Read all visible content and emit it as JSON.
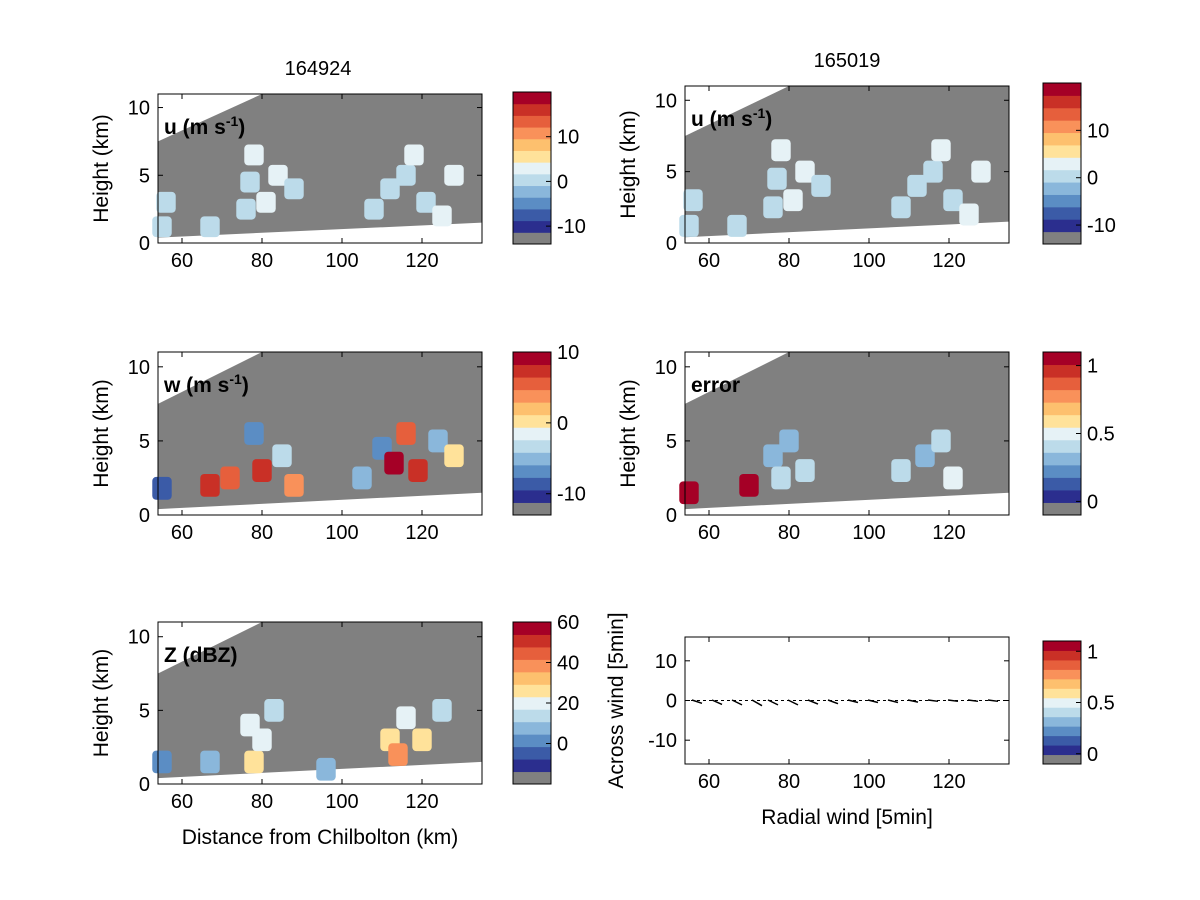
{
  "panel_titles": {
    "left": "164924",
    "right": "165019"
  },
  "palette": [
    "#808080",
    "#2b2e8e",
    "#3b5ba7",
    "#5b8dc4",
    "#8ab7db",
    "#bcdbea",
    "#e6f2f6",
    "#ffe29a",
    "#fdc06e",
    "#f9915a",
    "#e65f3c",
    "#c93026",
    "#a50026"
  ],
  "chart_data": [
    {
      "type": "heatmap",
      "panel": "u-164924",
      "in_label": "u (m s",
      "in_label_sup": "-1",
      "in_label_close": ")",
      "ylabel": "Height (km)",
      "xlabel": "",
      "xlim": [
        54,
        135
      ],
      "ylim": [
        0,
        11
      ],
      "xticks": [
        "60",
        "80",
        "100",
        "120"
      ],
      "yticks": [
        "0",
        "5",
        "10"
      ],
      "colorbar": {
        "ticks": [
          "10",
          "0",
          "-10"
        ],
        "tick_values": [
          10,
          0,
          -10
        ],
        "min": -14,
        "max": 20
      },
      "cells": [
        [
          55,
          1.2,
          0
        ],
        [
          56,
          3,
          0
        ],
        [
          67,
          1.2,
          0
        ],
        [
          76,
          2.5,
          0
        ],
        [
          78,
          6.5,
          1
        ],
        [
          77,
          4.5,
          0
        ],
        [
          81,
          3,
          1
        ],
        [
          84,
          5,
          1
        ],
        [
          88,
          4,
          0
        ],
        [
          108,
          2.5,
          0
        ],
        [
          112,
          4,
          0
        ],
        [
          116,
          5,
          0
        ],
        [
          118,
          6.5,
          1
        ],
        [
          121,
          3,
          0
        ],
        [
          125,
          2,
          1
        ],
        [
          128,
          5,
          1
        ]
      ]
    },
    {
      "type": "heatmap",
      "panel": "u-165019",
      "in_label": "u (m s",
      "in_label_sup": "-1",
      "in_label_close": ")",
      "ylabel": "Height (km)",
      "xlabel": "",
      "xlim": [
        54,
        135
      ],
      "ylim": [
        0,
        11
      ],
      "xticks": [
        "60",
        "80",
        "100",
        "120"
      ],
      "yticks": [
        "0",
        "5",
        "10"
      ],
      "colorbar": {
        "ticks": [
          "10",
          "0",
          "-10"
        ],
        "tick_values": [
          10,
          0,
          -10
        ],
        "min": -14,
        "max": 20
      },
      "cells": [
        [
          55,
          1.2,
          0
        ],
        [
          56,
          3,
          0
        ],
        [
          67,
          1.2,
          0
        ],
        [
          76,
          2.5,
          0
        ],
        [
          78,
          6.5,
          1
        ],
        [
          77,
          4.5,
          0
        ],
        [
          81,
          3,
          1
        ],
        [
          84,
          5,
          1
        ],
        [
          88,
          4,
          0
        ],
        [
          108,
          2.5,
          0
        ],
        [
          112,
          4,
          0
        ],
        [
          116,
          5,
          0
        ],
        [
          118,
          6.5,
          1
        ],
        [
          121,
          3,
          0
        ],
        [
          125,
          2,
          1
        ],
        [
          128,
          5,
          1
        ]
      ]
    },
    {
      "type": "heatmap",
      "panel": "w-164924",
      "in_label": "w (m s",
      "in_label_sup": "-1",
      "in_label_close": ")",
      "ylabel": "Height (km)",
      "xlabel": "",
      "xlim": [
        54,
        135
      ],
      "ylim": [
        0,
        11
      ],
      "xticks": [
        "60",
        "80",
        "100",
        "120"
      ],
      "yticks": [
        "0",
        "5",
        "10"
      ],
      "colorbar": {
        "ticks": [
          "10",
          "0",
          "-10"
        ],
        "tick_values": [
          10,
          0,
          -10
        ],
        "min": -13,
        "max": 10
      },
      "cells": [
        [
          55,
          1.8,
          -10
        ],
        [
          67,
          2,
          8
        ],
        [
          72,
          2.5,
          6
        ],
        [
          78,
          5.5,
          -8
        ],
        [
          80,
          3,
          8
        ],
        [
          85,
          4,
          -4
        ],
        [
          88,
          2,
          4
        ],
        [
          105,
          2.5,
          -6
        ],
        [
          110,
          4.5,
          -8
        ],
        [
          113,
          3.5,
          9
        ],
        [
          116,
          5.5,
          6
        ],
        [
          119,
          3,
          8
        ],
        [
          124,
          5,
          -6
        ],
        [
          128,
          4,
          0
        ]
      ]
    },
    {
      "type": "heatmap",
      "panel": "error-165019",
      "in_label": "error",
      "in_label_sup": "",
      "in_label_close": "",
      "ylabel": "Height (km)",
      "xlabel": "",
      "xlim": [
        54,
        135
      ],
      "ylim": [
        0,
        11
      ],
      "xticks": [
        "60",
        "80",
        "100",
        "120"
      ],
      "yticks": [
        "0",
        "5",
        "10"
      ],
      "colorbar": {
        "ticks": [
          "1",
          "0.5",
          "0"
        ],
        "tick_values": [
          1,
          0.5,
          0
        ],
        "min": -0.1,
        "max": 1.1
      },
      "cells": [
        [
          55,
          1.5,
          1
        ],
        [
          70,
          2,
          1
        ],
        [
          76,
          4,
          0.2
        ],
        [
          78,
          2.5,
          0.3
        ],
        [
          80,
          5,
          0.25
        ],
        [
          84,
          3,
          0.35
        ],
        [
          108,
          3,
          0.3
        ],
        [
          114,
          4,
          0.25
        ],
        [
          118,
          5,
          0.3
        ],
        [
          121,
          2.5,
          0.4
        ]
      ]
    },
    {
      "type": "heatmap",
      "panel": "Z-164924",
      "in_label": "Z (dBZ)",
      "in_label_sup": "",
      "in_label_close": "",
      "ylabel": "Height (km)",
      "xlabel": "Distance from Chilbolton (km)",
      "xlim": [
        54,
        135
      ],
      "ylim": [
        0,
        11
      ],
      "xticks": [
        "60",
        "80",
        "100",
        "120"
      ],
      "yticks": [
        "0",
        "5",
        "10"
      ],
      "colorbar": {
        "ticks": [
          "60",
          "40",
          "20",
          "0"
        ],
        "tick_values": [
          60,
          40,
          20,
          0
        ],
        "min": -20,
        "max": 60
      },
      "cells": [
        [
          55,
          1.5,
          -5
        ],
        [
          67,
          1.5,
          0
        ],
        [
          77,
          4,
          15
        ],
        [
          78,
          1.5,
          22
        ],
        [
          80,
          3,
          18
        ],
        [
          83,
          5,
          12
        ],
        [
          96,
          1,
          0
        ],
        [
          112,
          3,
          20
        ],
        [
          114,
          2,
          35
        ],
        [
          116,
          4.5,
          18
        ],
        [
          120,
          3,
          25
        ],
        [
          125,
          5,
          10
        ]
      ]
    },
    {
      "type": "scatter",
      "panel": "wind-vectors",
      "in_label": "",
      "in_label_sup": "",
      "in_label_close": "",
      "ylabel": "Across wind [5min]",
      "xlabel": "Radial wind [5min]",
      "xlim": [
        54,
        135
      ],
      "ylim": [
        -16,
        16
      ],
      "xticks": [
        "60",
        "80",
        "100",
        "120"
      ],
      "yticks": [
        "-10",
        "0",
        "10"
      ],
      "colorbar": {
        "ticks": [
          "1",
          "0.5",
          "0"
        ],
        "tick_values": [
          1,
          0.5,
          0
        ],
        "min": -0.1,
        "max": 1.1
      },
      "arrows": [
        [
          57,
          -0.2
        ],
        [
          62,
          -0.5
        ],
        [
          67,
          -0.6
        ],
        [
          72,
          -0.8
        ],
        [
          76,
          -0.6
        ],
        [
          81,
          -0.6
        ],
        [
          86,
          -0.4
        ],
        [
          91,
          -0.3
        ],
        [
          96,
          0
        ],
        [
          101,
          0
        ],
        [
          106,
          0
        ],
        [
          111,
          0.1
        ],
        [
          116,
          0.3
        ],
        [
          121,
          0.3
        ],
        [
          126,
          0.3
        ],
        [
          131,
          0.3
        ]
      ]
    }
  ]
}
